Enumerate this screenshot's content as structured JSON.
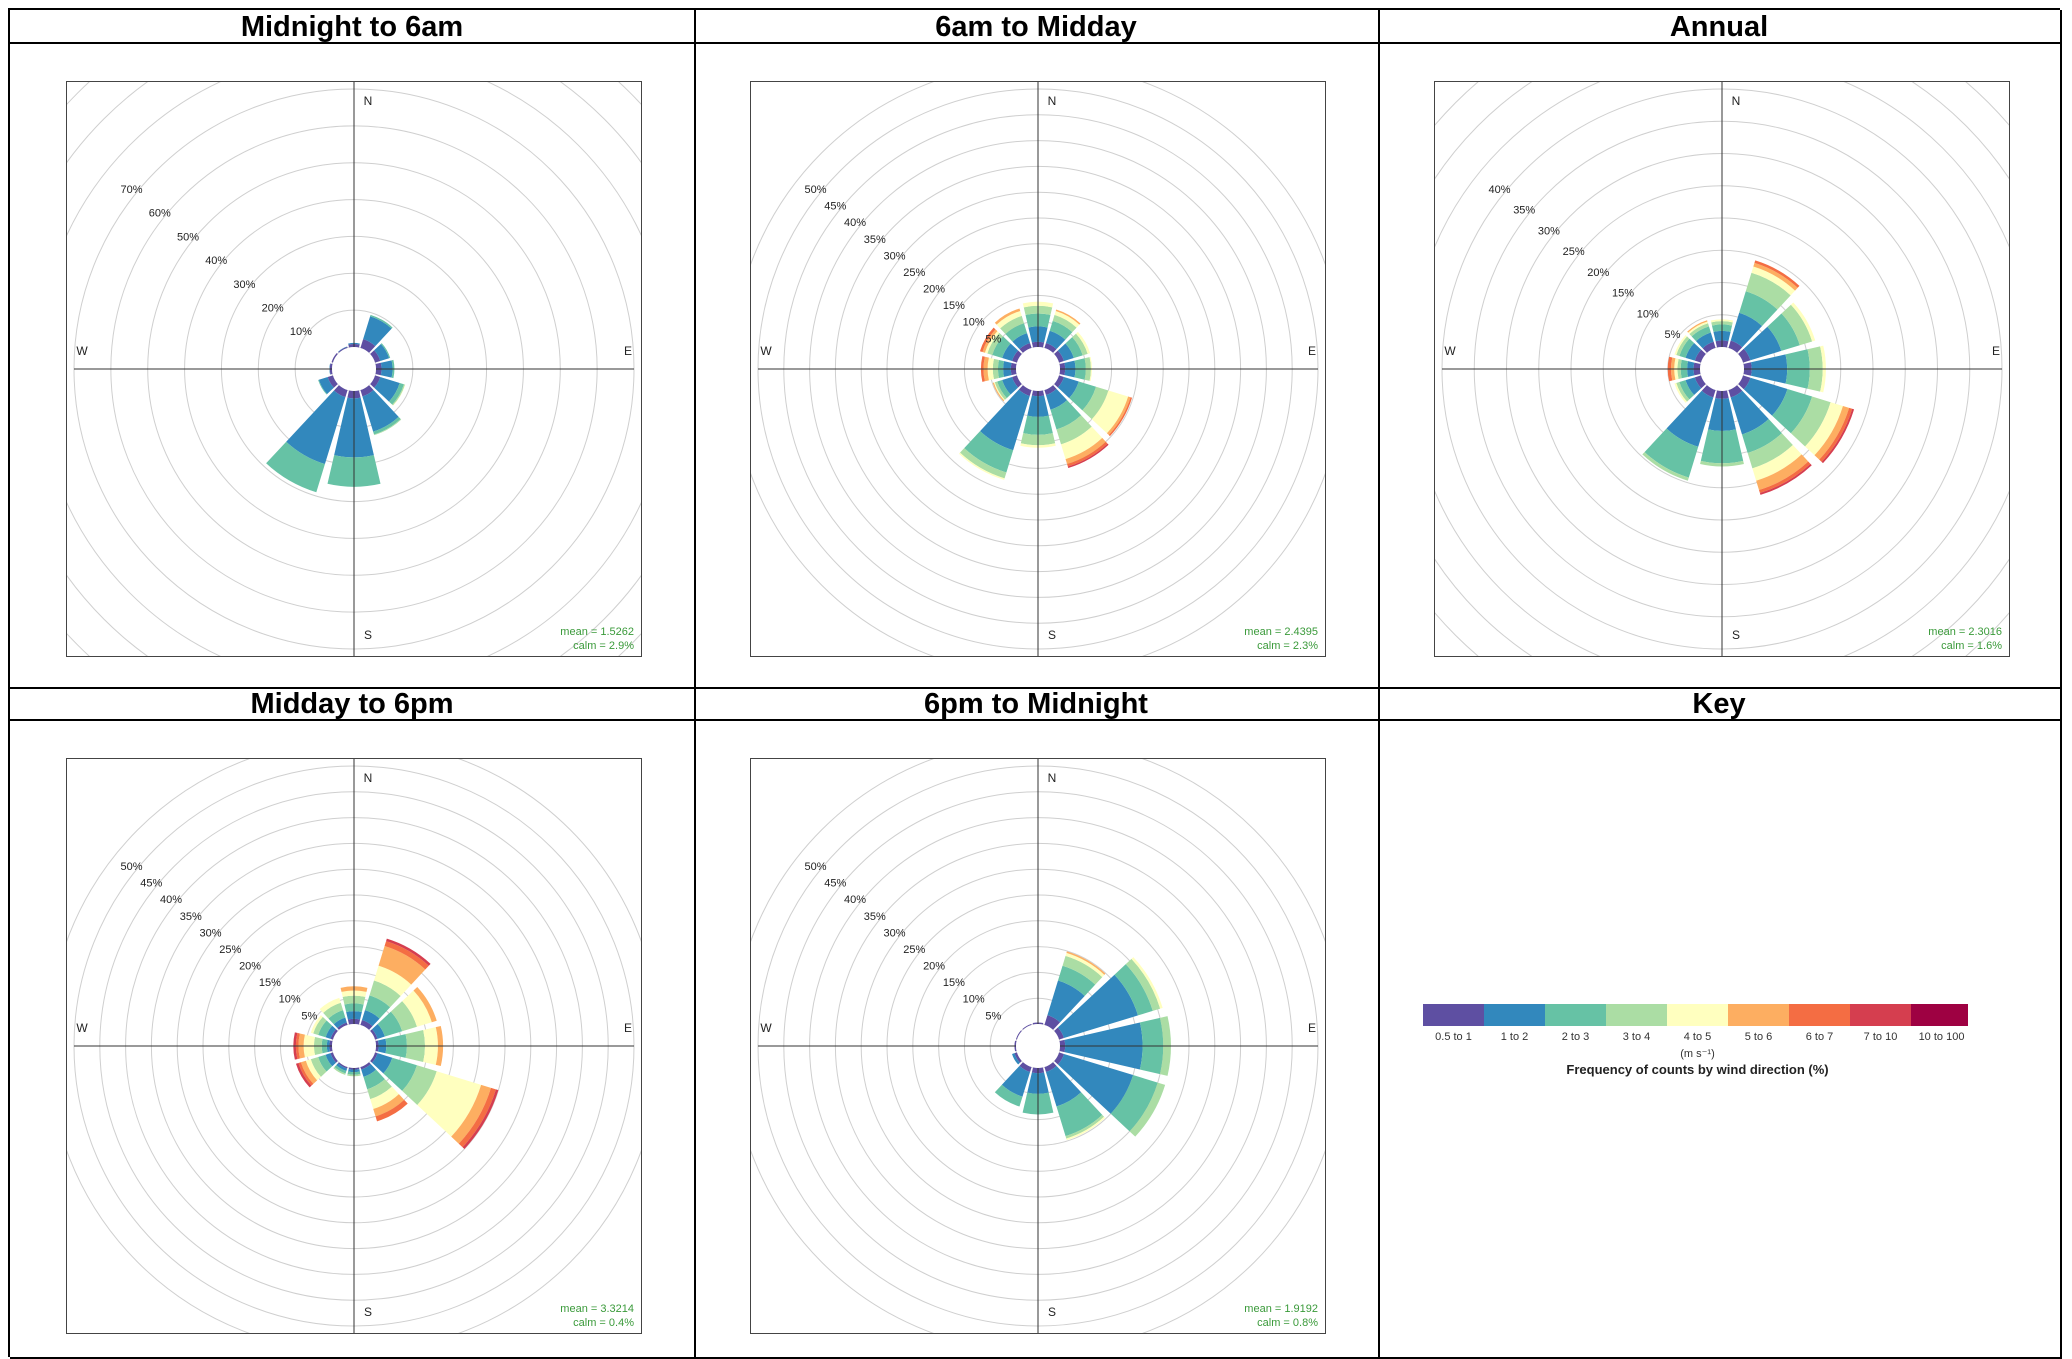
{
  "colors": [
    "#5e4fa2",
    "#3288bd",
    "#66c2a5",
    "#abdda4",
    "#ffffbf",
    "#fdae61",
    "#f46d43",
    "#d53e4f",
    "#9e0142"
  ],
  "directions": [
    "N",
    "E",
    "S",
    "W"
  ],
  "key": {
    "title": "Key",
    "bins": [
      "0.5 to 1",
      "1 to 2",
      "2 to 3",
      "3 to 4",
      "4 to 5",
      "5 to 6",
      "6 to 7",
      "7 to 10",
      "10 to 100"
    ],
    "unit": "(m s⁻¹)",
    "caption": "Frequency of counts by wind direction (%)"
  },
  "chart_data": [
    {
      "type": "windrose",
      "title": "Midnight to 6am",
      "rings": [
        10,
        20,
        30,
        40,
        50,
        60,
        70
      ],
      "ring_labels": [
        "10%",
        "20%",
        "30%",
        "40%",
        "50%",
        "60%",
        "70%"
      ],
      "max": 70,
      "mean": "mean = 1.5262",
      "calm": "calm = 2.9%",
      "directions_deg": [
        0,
        30,
        60,
        90,
        120,
        150,
        180,
        210,
        240,
        270,
        300,
        330
      ],
      "bins": [
        "0.5 to 1",
        "1 to 2",
        "2 to 3",
        "3 to 4",
        "4 to 5",
        "5 to 6",
        "6 to 7",
        "7 to 10",
        "10 to 100"
      ],
      "values": [
        [
          0.8,
          0.3,
          0,
          0,
          0,
          0,
          0,
          0,
          0
        ],
        [
          2.5,
          6.5,
          0.4,
          0,
          0,
          0,
          0,
          0,
          0
        ],
        [
          1.5,
          2.5,
          0.3,
          0,
          0,
          0,
          0,
          0,
          0
        ],
        [
          1.5,
          3,
          0.5,
          0,
          0,
          0,
          0,
          0,
          0
        ],
        [
          1.5,
          5.5,
          1.2,
          0.3,
          0.1,
          0,
          0,
          0,
          0
        ],
        [
          1.8,
          10,
          0.8,
          0.2,
          0,
          0,
          0,
          0,
          0
        ],
        [
          2,
          16,
          8,
          0,
          0,
          0,
          0,
          0,
          0
        ],
        [
          2,
          19,
          8,
          0,
          0,
          0,
          0,
          0,
          0
        ],
        [
          1.5,
          2.5,
          0.2,
          0,
          0,
          0,
          0,
          0,
          0
        ],
        [
          0.6,
          0.1,
          0,
          0,
          0,
          0,
          0,
          0,
          0
        ],
        [
          0.4,
          0,
          0,
          0,
          0,
          0,
          0,
          0,
          0
        ],
        [
          0.3,
          0.1,
          0,
          0,
          0,
          0,
          0,
          0,
          0
        ]
      ]
    },
    {
      "type": "windrose",
      "title": "6am to Midday",
      "rings": [
        5,
        10,
        15,
        20,
        25,
        30,
        35,
        40,
        45,
        50
      ],
      "ring_labels": [
        "5%",
        "10%",
        "15%",
        "20%",
        "25%",
        "30%",
        "35%",
        "40%",
        "45%",
        "50%"
      ],
      "max": 50,
      "mean": "mean = 2.4395",
      "calm": "calm = 2.3%",
      "directions_deg": [
        0,
        30,
        60,
        90,
        120,
        150,
        180,
        210,
        240,
        270,
        300,
        330
      ],
      "bins": [
        "0.5 to 1",
        "1 to 2",
        "2 to 3",
        "3 to 4",
        "4 to 5",
        "5 to 6",
        "6 to 7",
        "7 to 10",
        "10 to 100"
      ],
      "values": [
        [
          1,
          3,
          2.5,
          1.5,
          0.8,
          0,
          0,
          0,
          0
        ],
        [
          1,
          2.5,
          2,
          1.2,
          0.8,
          0.3,
          0,
          0,
          0
        ],
        [
          1,
          2,
          1.8,
          1,
          0.5,
          0,
          0,
          0,
          0
        ],
        [
          1,
          2,
          2,
          1,
          0.2,
          0,
          0,
          0,
          0
        ],
        [
          1,
          3,
          3.5,
          2.5,
          4,
          0.5,
          0.3,
          0,
          0
        ],
        [
          1,
          3,
          4,
          3,
          3,
          1,
          0.5,
          0.3,
          0
        ],
        [
          1,
          4,
          3.5,
          2,
          0.5,
          0,
          0,
          0,
          0
        ],
        [
          1.2,
          11,
          4.5,
          1.2,
          0.3,
          0,
          0,
          0,
          0
        ],
        [
          1,
          2,
          1,
          0.5,
          0.2,
          0.2,
          0,
          0,
          0
        ],
        [
          1,
          1.5,
          1,
          1,
          1,
          0.8,
          0.5,
          0,
          0
        ],
        [
          1,
          2,
          2,
          1,
          0.5,
          0.5,
          0.5,
          0,
          0
        ],
        [
          1,
          2,
          2,
          1.5,
          1,
          0.5,
          0,
          0,
          0
        ]
      ]
    },
    {
      "type": "windrose",
      "title": "Annual",
      "rings": [
        5,
        10,
        15,
        20,
        25,
        30,
        35,
        40
      ],
      "ring_labels": [
        "5%",
        "10%",
        "15%",
        "20%",
        "25%",
        "30%",
        "35%",
        "40%"
      ],
      "max": 40,
      "mean": "mean = 2.3016",
      "calm": "calm = 1.6%",
      "directions_deg": [
        0,
        30,
        60,
        90,
        120,
        150,
        180,
        210,
        240,
        270,
        300,
        330
      ],
      "bins": [
        "0.5 to 1",
        "1 to 2",
        "2 to 3",
        "3 to 4",
        "4 to 5",
        "5 to 6",
        "6 to 7",
        "7 to 10",
        "10 to 100"
      ],
      "values": [
        [
          1,
          1.5,
          1,
          0.5,
          0.3,
          0,
          0,
          0,
          0
        ],
        [
          1.2,
          4.5,
          3.5,
          3,
          1,
          0.6,
          0.4,
          0,
          0
        ],
        [
          1.2,
          5,
          3,
          2,
          0.5,
          0,
          0,
          0,
          0
        ],
        [
          1.2,
          5.5,
          3.5,
          2,
          0.5,
          0,
          0,
          0,
          0
        ],
        [
          1.2,
          6,
          4,
          3,
          2,
          1,
          0.5,
          0.3,
          0
        ],
        [
          1.2,
          6,
          3,
          2.5,
          2,
          1.5,
          0.5,
          0.3,
          0
        ],
        [
          1.2,
          5,
          5,
          0.5,
          0,
          0,
          0,
          0,
          0
        ],
        [
          1.2,
          8,
          5,
          0.5,
          0,
          0,
          0,
          0,
          0
        ],
        [
          1,
          1.5,
          1,
          0.5,
          0.3,
          0,
          0,
          0,
          0
        ],
        [
          1,
          1,
          1,
          0.5,
          0.5,
          0.5,
          0.5,
          0,
          0
        ],
        [
          1,
          1.5,
          1,
          0.5,
          0.3,
          0,
          0,
          0,
          0
        ],
        [
          1,
          1.5,
          1,
          0.5,
          0.3,
          0.2,
          0,
          0,
          0
        ]
      ]
    },
    {
      "type": "windrose",
      "title": "Midday to 6pm",
      "rings": [
        5,
        10,
        15,
        20,
        25,
        30,
        35,
        40,
        45,
        50
      ],
      "ring_labels": [
        "5%",
        "10%",
        "15%",
        "20%",
        "25%",
        "30%",
        "35%",
        "40%",
        "45%",
        "50%"
      ],
      "max": 50,
      "mean": "mean = 3.3214",
      "calm": "calm = 0.4%",
      "directions_deg": [
        0,
        30,
        60,
        90,
        120,
        150,
        180,
        210,
        240,
        270,
        300,
        330
      ],
      "bins": [
        "0.5 to 1",
        "1 to 2",
        "2 to 3",
        "3 to 4",
        "4 to 5",
        "5 to 6",
        "6 to 7",
        "7 to 10",
        "10 to 100"
      ],
      "values": [
        [
          1,
          1.5,
          1.5,
          1.5,
          1,
          0.8,
          0,
          0,
          0
        ],
        [
          1,
          2,
          3,
          3,
          3,
          4,
          1,
          0.5,
          0
        ],
        [
          0.5,
          1.5,
          3.5,
          3,
          3,
          1,
          0,
          0,
          0
        ],
        [
          0.5,
          1.5,
          4,
          3.5,
          2.5,
          1,
          0,
          0,
          0
        ],
        [
          0.5,
          3,
          5,
          4,
          9,
          2,
          1,
          0.5,
          0
        ],
        [
          0.5,
          1.5,
          2.5,
          2,
          2,
          1.5,
          1,
          0,
          0
        ],
        [
          0.3,
          0.5,
          0.5,
          0.3,
          0,
          0,
          0,
          0,
          0
        ],
        [
          0.3,
          0.5,
          0.5,
          0.3,
          0,
          0,
          0,
          0,
          0
        ],
        [
          0.5,
          1,
          1.5,
          1.5,
          1,
          1,
          0.5,
          0.5,
          0
        ],
        [
          0.5,
          0.5,
          1,
          1.5,
          2,
          1,
          0.5,
          0.5,
          0
        ],
        [
          0.5,
          1,
          1.5,
          1,
          0.5,
          0,
          0,
          0,
          0
        ],
        [
          0.5,
          1,
          1.5,
          1.5,
          1,
          0,
          0,
          0,
          0
        ]
      ]
    },
    {
      "type": "windrose",
      "title": "6pm to Midnight",
      "rings": [
        5,
        10,
        15,
        20,
        25,
        30,
        35,
        40,
        45,
        50
      ],
      "ring_labels": [
        "5%",
        "10%",
        "15%",
        "20%",
        "25%",
        "30%",
        "35%",
        "40%",
        "45%",
        "50%"
      ],
      "max": 50,
      "mean": "mean = 1.9192",
      "calm": "calm = 0.8%",
      "directions_deg": [
        0,
        30,
        60,
        90,
        120,
        150,
        180,
        210,
        240,
        270,
        300,
        330
      ],
      "bins": [
        "0.5 to 1",
        "1 to 2",
        "2 to 3",
        "3 to 4",
        "4 to 5",
        "5 to 6",
        "6 to 7",
        "7 to 10",
        "10 to 100"
      ],
      "values": [
        [
          0.3,
          0,
          0,
          0,
          0,
          0,
          0,
          0,
          0
        ],
        [
          2,
          7,
          3,
          2,
          0.6,
          0.3,
          0,
          0,
          0
        ],
        [
          1,
          15,
          3,
          1.5,
          0.5,
          0,
          0,
          0,
          0
        ],
        [
          1,
          15,
          4,
          1.5,
          0,
          0,
          0,
          0,
          0
        ],
        [
          1,
          14,
          5,
          1.5,
          0,
          0,
          0,
          0,
          0
        ],
        [
          1,
          7,
          6,
          0.5,
          0.3,
          0,
          0,
          0,
          0
        ],
        [
          1,
          4,
          4,
          0,
          0,
          0,
          0,
          0,
          0
        ],
        [
          1,
          5,
          2,
          0,
          0,
          0,
          0,
          0,
          0
        ],
        [
          0.5,
          0.5,
          0,
          0,
          0,
          0,
          0,
          0,
          0
        ],
        [
          0.3,
          0,
          0,
          0,
          0,
          0,
          0,
          0,
          0
        ],
        [
          0.2,
          0,
          0,
          0,
          0,
          0,
          0,
          0,
          0
        ],
        [
          0.2,
          0,
          0,
          0,
          0,
          0,
          0,
          0,
          0
        ]
      ]
    }
  ]
}
